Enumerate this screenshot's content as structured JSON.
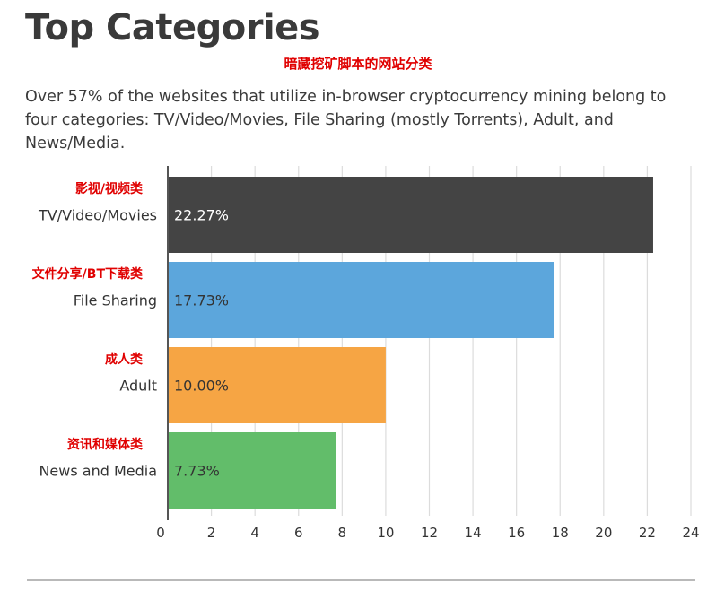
{
  "header": {
    "title": "Top Categories",
    "cn_subtitle": "暗藏挖矿脚本的网站分类",
    "description": "Over 57% of the websites that utilize in-browser cryptocurrency mining belong to four categories: TV/Video/Movies, File Sharing (mostly Torrents), Adult, and News/Media."
  },
  "chart_data": {
    "type": "bar",
    "orientation": "horizontal",
    "categories": [
      "TV/Video/Movies",
      "File Sharing",
      "Adult",
      "News and Media"
    ],
    "categories_cn": [
      "影视/视频类",
      "文件分享/BT下载类",
      "成人类",
      "资讯和媒体类"
    ],
    "values": [
      22.27,
      17.73,
      10.0,
      7.73
    ],
    "value_labels": [
      "22.27%",
      "17.73%",
      "10.00%",
      "7.73%"
    ],
    "colors": [
      "#444444",
      "#5ca6dc",
      "#f6a544",
      "#62bd6a"
    ],
    "value_label_colors": [
      "#ffffff",
      "#333333",
      "#333333",
      "#333333"
    ],
    "xlim": [
      0,
      24
    ],
    "xticks": [
      0,
      2,
      4,
      6,
      8,
      10,
      12,
      14,
      16,
      18,
      20,
      22,
      24
    ],
    "grid": true
  }
}
